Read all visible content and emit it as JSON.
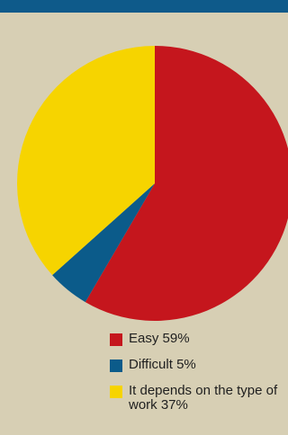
{
  "chart_data": {
    "type": "pie",
    "categories": [
      "Easy",
      "Difficult",
      "It depends on the type of work"
    ],
    "values": [
      59,
      5,
      37
    ],
    "colors": [
      "#c5161d",
      "#0b5b8a",
      "#f6d400"
    ],
    "legend": [
      "Easy 59%",
      "Difficult 5%",
      "It depends on the type of work 37%"
    ],
    "title": "",
    "xlabel": "",
    "ylabel": ""
  },
  "legend_items": [
    {
      "text": "Easy 59%",
      "color": "#c5161d"
    },
    {
      "text": "Difficult 5%",
      "color": "#0b5b8a"
    },
    {
      "text": "It depends on the type of work 37%",
      "color": "#f6d400"
    }
  ]
}
